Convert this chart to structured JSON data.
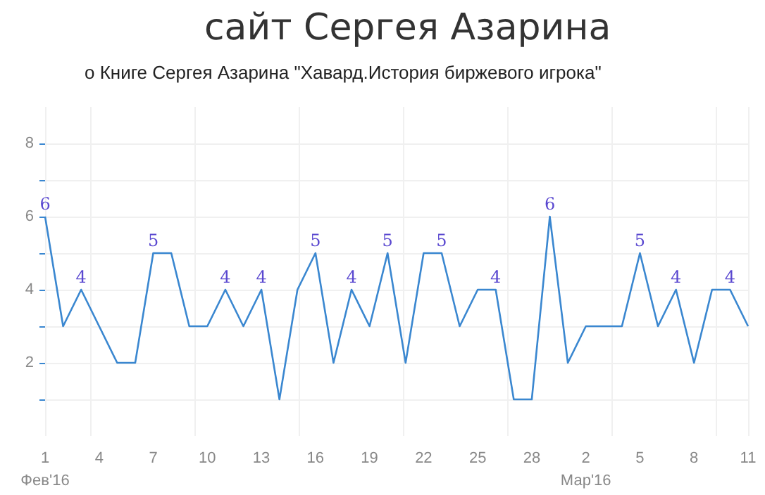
{
  "chart_data": {
    "type": "line",
    "title": "сайт Сергея Азарина",
    "subtitle": "о Книге Сергея Азарина \"Хавард.История биржевого игрока\"",
    "x": [
      "2016-02-01",
      "2016-02-02",
      "2016-02-03",
      "2016-02-04",
      "2016-02-05",
      "2016-02-06",
      "2016-02-07",
      "2016-02-08",
      "2016-02-09",
      "2016-02-10",
      "2016-02-11",
      "2016-02-12",
      "2016-02-13",
      "2016-02-14",
      "2016-02-15",
      "2016-02-16",
      "2016-02-17",
      "2016-02-18",
      "2016-02-19",
      "2016-02-20",
      "2016-02-21",
      "2016-02-22",
      "2016-02-23",
      "2016-02-24",
      "2016-02-25",
      "2016-02-26",
      "2016-02-27",
      "2016-02-28",
      "2016-02-29",
      "2016-03-01",
      "2016-03-02",
      "2016-03-03",
      "2016-03-04",
      "2016-03-05",
      "2016-03-06",
      "2016-03-07",
      "2016-03-08",
      "2016-03-09",
      "2016-03-10",
      "2016-03-11"
    ],
    "series": [
      {
        "color": "#3a87d0",
        "values": [
          6,
          3,
          4,
          3,
          2,
          2,
          5,
          5,
          3,
          3,
          4,
          3,
          4,
          1,
          4,
          5,
          2,
          4,
          3,
          5,
          2,
          5,
          5,
          3,
          4,
          4,
          1,
          1,
          6,
          2,
          3,
          3,
          3,
          5,
          3,
          4,
          2,
          4,
          4,
          3
        ],
        "value_labels": [
          "6",
          null,
          "4",
          null,
          null,
          null,
          "5",
          null,
          null,
          null,
          "4",
          null,
          "4",
          null,
          null,
          "5",
          null,
          "4",
          null,
          "5",
          null,
          null,
          "5",
          null,
          null,
          "4",
          null,
          null,
          "6",
          null,
          null,
          null,
          null,
          "5",
          null,
          "4",
          null,
          null,
          "4",
          null
        ]
      }
    ],
    "xlim": [
      "2016-02-01",
      "2016-03-11"
    ],
    "xticks": [
      {
        "value": "2016-02-01",
        "label": "1\nФев'16"
      },
      {
        "value": "2016-02-04",
        "label": "4"
      },
      {
        "value": "2016-02-07",
        "label": "7"
      },
      {
        "value": "2016-02-10",
        "label": "10"
      },
      {
        "value": "2016-02-13",
        "label": "13"
      },
      {
        "value": "2016-02-16",
        "label": "16"
      },
      {
        "value": "2016-02-19",
        "label": "19"
      },
      {
        "value": "2016-02-22",
        "label": "22"
      },
      {
        "value": "2016-02-25",
        "label": "25"
      },
      {
        "value": "2016-02-28",
        "label": "28"
      },
      {
        "value": "2016-03-02",
        "label": "2\nМар'16"
      },
      {
        "value": "2016-03-05",
        "label": "5"
      },
      {
        "value": "2016-03-08",
        "label": "8"
      },
      {
        "value": "2016-03-11",
        "label": "11"
      }
    ],
    "ylim": [
      0,
      9
    ],
    "yticks": [
      {
        "value": 1,
        "label": null
      },
      2,
      {
        "value": 3,
        "label": null
      },
      4,
      {
        "value": 5,
        "label": null
      },
      6,
      {
        "value": 7,
        "label": null
      },
      8
    ],
    "grid": true,
    "marker": "none",
    "line_style": "solid"
  }
}
